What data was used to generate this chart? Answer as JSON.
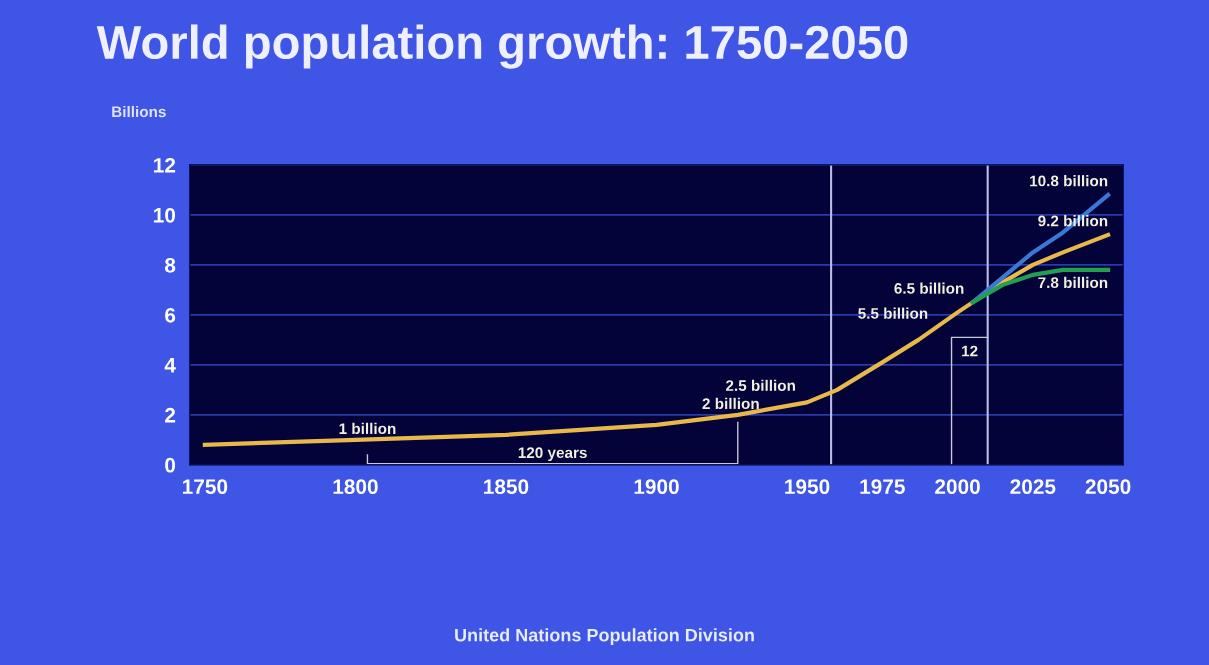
{
  "chart_data": {
    "type": "line",
    "title": "World population growth: 1750-2050",
    "ylabel": "Billions",
    "ylim": [
      0,
      12
    ],
    "yticks": [
      0,
      2,
      4,
      6,
      8,
      10,
      12
    ],
    "xlim": [
      1745,
      2055
    ],
    "xticks": [
      1750,
      1800,
      1850,
      1900,
      1950,
      1975,
      2000,
      2025,
      2050
    ],
    "grid": "y",
    "marker": "none",
    "line_style": "solid",
    "series": [
      {
        "color": "#e8b84a",
        "x": [
          1750,
          1800,
          1850,
          1900,
          1927,
          1950,
          1960,
          1975,
          1987,
          2000,
          2005,
          2015,
          2025,
          2035,
          2050
        ],
        "values": [
          0.8,
          1.0,
          1.2,
          1.6,
          2.0,
          2.5,
          3.0,
          4.1,
          5.0,
          6.1,
          6.5,
          7.3,
          8.0,
          8.5,
          9.2
        ]
      },
      {
        "color": "#3a78d8",
        "x": [
          2005,
          2015,
          2025,
          2035,
          2050
        ],
        "values": [
          6.5,
          7.5,
          8.5,
          9.3,
          10.8
        ]
      },
      {
        "color": "#22a050",
        "x": [
          2005,
          2015,
          2025,
          2035,
          2050
        ],
        "values": [
          6.5,
          7.2,
          7.6,
          7.8,
          7.8
        ]
      }
    ],
    "ref_lines": [
      {
        "axis": "x",
        "value": 1958,
        "color": "#b8c0e8"
      },
      {
        "axis": "x",
        "value": 2010,
        "color": "#b8c0e8"
      }
    ],
    "annotations": [
      {
        "text": "1 billion",
        "x": 1804,
        "y": 1.0
      },
      {
        "text": "2 billion",
        "x": 1927,
        "y": 2.0
      },
      {
        "text": "2.5 billion",
        "x": 1950,
        "y": 2.5
      },
      {
        "text": "5.5 billion",
        "x": 1993,
        "y": 5.5
      },
      {
        "text": "6.5 billion",
        "x": 2005,
        "y": 6.5
      },
      {
        "text": "10.8 billion",
        "x": 2050,
        "y": 10.8
      },
      {
        "text": "9.2 billion",
        "x": 2050,
        "y": 9.2
      },
      {
        "text": "7.8 billion",
        "x": 2050,
        "y": 7.8
      },
      "120 years",
      "12",
      "United Nations Population Division"
    ]
  }
}
